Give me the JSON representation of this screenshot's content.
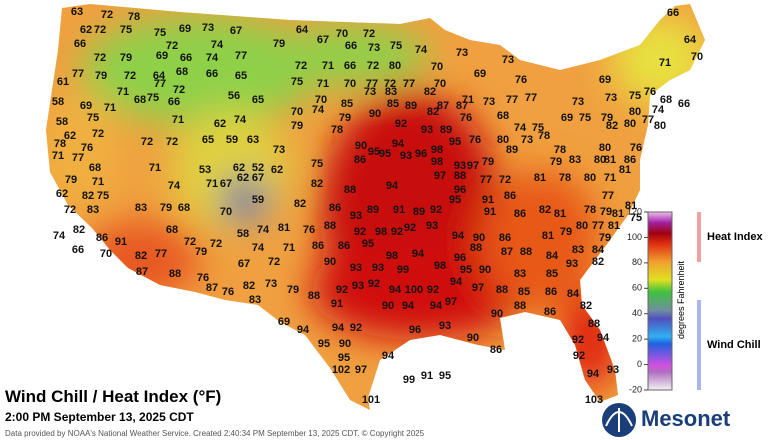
{
  "map": {
    "title": "Wind Chill / Heat Index (°F)",
    "subtitle": "2:00 PM September 13, 2025 CDT",
    "credit": "Data provided by NOAA's National Weather Service. Created 2:40:34 PM September 13, 2025 CDT. © Copyright 2025",
    "logo": "Mesonet",
    "colorbar": {
      "label": "degrees Fahrenheit",
      "lim": [
        -20,
        120
      ],
      "ticks": [
        120,
        100,
        80,
        60,
        40,
        20,
        0,
        -20
      ],
      "upper": "Heat Index",
      "lower": "Wind Chill"
    },
    "stations": [
      63,
      72,
      78,
      62,
      72,
      75,
      75,
      69,
      73,
      67,
      64,
      70,
      72,
      66,
      66,
      72,
      74,
      79,
      67,
      66,
      73,
      75,
      74,
      73,
      64,
      72,
      79,
      69,
      66,
      74,
      77,
      72,
      71,
      66,
      72,
      80,
      70,
      73,
      70,
      77,
      79,
      72,
      64,
      68,
      66,
      65,
      75,
      71,
      70,
      77,
      72,
      77,
      70,
      69,
      76,
      69,
      71,
      61,
      71,
      68,
      77,
      72,
      85,
      73,
      83,
      82,
      71,
      73,
      77,
      76,
      58,
      69,
      75,
      66,
      56,
      65,
      70,
      89,
      87,
      87,
      77,
      73,
      73,
      75,
      68,
      66,
      71,
      71,
      62,
      74,
      70,
      74,
      79,
      90,
      85,
      92,
      82,
      76,
      68,
      74,
      75,
      69,
      75,
      79,
      80,
      74,
      58,
      62,
      75,
      72,
      78,
      93,
      89,
      76,
      80,
      73,
      78,
      82,
      80,
      77,
      80,
      78,
      76,
      72,
      72,
      65,
      59,
      63,
      73,
      79,
      90,
      95,
      94,
      98,
      95,
      78,
      80,
      76,
      71,
      77,
      86,
      95,
      93,
      96,
      89,
      79,
      83,
      80,
      81,
      86,
      68,
      71,
      53,
      62,
      52,
      62,
      75,
      98,
      93,
      97,
      79,
      81,
      79,
      71,
      67,
      62,
      71,
      67,
      82,
      94,
      97,
      88,
      77,
      72,
      81,
      78,
      80,
      71,
      62,
      82,
      75,
      74,
      88,
      96,
      91,
      86,
      77,
      72,
      83,
      83,
      79,
      68,
      70,
      59,
      82,
      86,
      93,
      89,
      91,
      89,
      92,
      95,
      91,
      86,
      82,
      81,
      78,
      79,
      81,
      81,
      75,
      74,
      82,
      86,
      91,
      68,
      72,
      72,
      58,
      74,
      81,
      76,
      88,
      92,
      98,
      92,
      92,
      93,
      94,
      90,
      86,
      81,
      79,
      80,
      77,
      81,
      79,
      66,
      70,
      82,
      77,
      79,
      74,
      71,
      86,
      86,
      95,
      98,
      94,
      96,
      88,
      87,
      88,
      84,
      83,
      84,
      67,
      72,
      90,
      93,
      93,
      99,
      98,
      95,
      90,
      83,
      85,
      93,
      82,
      87,
      88,
      76,
      87,
      76,
      82,
      73,
      79,
      88,
      92,
      93,
      92,
      94,
      100,
      92,
      94,
      97,
      88,
      85,
      86,
      84,
      83,
      91,
      90,
      94,
      97,
      94,
      88,
      90,
      86,
      82,
      69,
      94,
      94,
      92,
      96,
      93,
      88,
      95,
      90,
      90,
      86,
      92,
      94,
      95,
      102,
      97,
      94,
      92,
      99,
      91,
      95,
      94,
      93,
      101,
      103
    ]
  }
}
